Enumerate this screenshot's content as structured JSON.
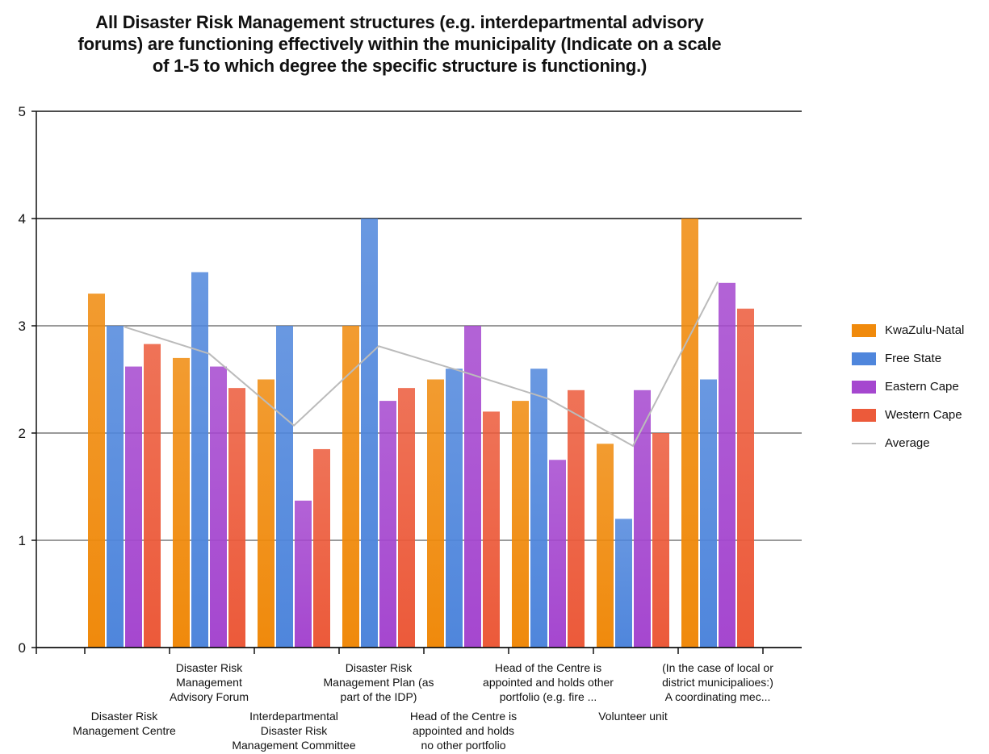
{
  "title": {
    "line1": "All Disaster Risk Management structures (e.g. interdepartmental advisory",
    "line2": "forums) are functioning effectively within the municipality (Indicate on a scale",
    "line3": "of 1-5 to which degree the specific structure is functioning.)"
  },
  "colors": {
    "KwaZulu-Natal": "#f08a0c",
    "Free State": "#4f86dc",
    "Eastern Cape": "#a547cf",
    "Western Cape": "#ec5a3a",
    "Average": "#bbbbbb"
  },
  "legend": {
    "items": [
      "KwaZulu-Natal",
      "Free State",
      "Eastern Cape",
      "Western Cape",
      "Average"
    ]
  },
  "chart_data": {
    "type": "bar",
    "title": "All Disaster Risk Management structures (e.g. interdepartmental advisory forums) are functioning effectively within the municipality (Indicate on a scale of 1-5 to which degree the specific structure is functioning.)",
    "xlabel": "",
    "ylabel": "",
    "ylim": [
      0,
      5
    ],
    "yticks": [
      0,
      1,
      2,
      3,
      4,
      5
    ],
    "grid": true,
    "legend_position": "right",
    "categories": [
      [
        "Disaster Risk",
        "Management Centre"
      ],
      [
        "Disaster Risk",
        "Management",
        "Advisory Forum"
      ],
      [
        "Interdepartmental",
        "Disaster Risk",
        "Management Committee"
      ],
      [
        "Disaster Risk",
        "Management Plan (as",
        "part of the IDP)"
      ],
      [
        "Head of the Centre is",
        "appointed and holds",
        "no other portfolio"
      ],
      [
        "Head of the Centre is",
        "appointed and holds other",
        "portfolio (e.g. fire ..."
      ],
      [
        "Volunteer unit"
      ],
      [
        "(In the case of local or",
        "district municipalioes:)",
        "A coordinating mec..."
      ]
    ],
    "series": [
      {
        "name": "KwaZulu-Natal",
        "values": [
          3.3,
          2.7,
          2.5,
          3.0,
          2.5,
          2.3,
          1.9,
          4.0
        ]
      },
      {
        "name": "Free State",
        "values": [
          3.0,
          3.5,
          3.0,
          4.0,
          2.6,
          2.6,
          1.2,
          2.5
        ]
      },
      {
        "name": "Eastern Cape",
        "values": [
          2.62,
          2.62,
          1.37,
          2.3,
          3.0,
          1.75,
          2.4,
          3.4
        ]
      },
      {
        "name": "Western Cape",
        "values": [
          2.83,
          2.42,
          1.85,
          2.42,
          2.2,
          2.4,
          2.0,
          3.16
        ]
      }
    ],
    "line_series": {
      "name": "Average",
      "values": [
        2.99,
        2.74,
        2.07,
        2.81,
        2.57,
        2.32,
        1.88,
        3.41
      ]
    }
  }
}
